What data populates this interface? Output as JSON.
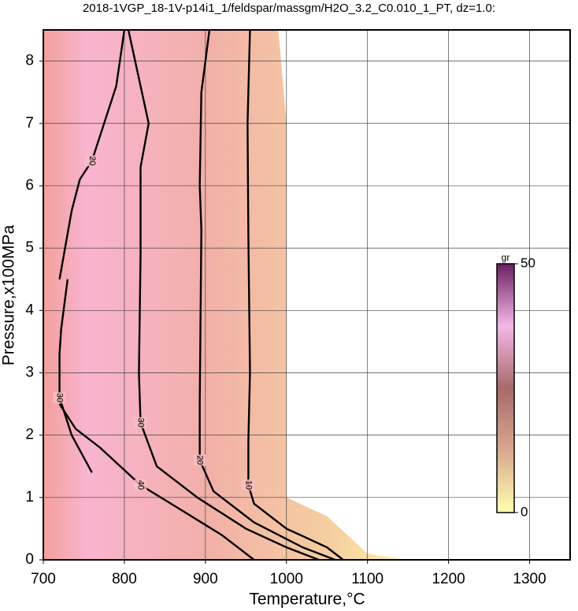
{
  "chart_data": {
    "type": "contour",
    "title": "2018-1VGP_18-1V-p14i1_1/feldspar/massgm/H2O_3.2_C0.010_1_PT, dz=1.0:",
    "x_label": "Temperature,°C",
    "y_label": "Pressure,x100MPa",
    "xlim": [
      700,
      1350
    ],
    "ylim": [
      0,
      8.5
    ],
    "xticks": [
      700,
      800,
      900,
      1000,
      1100,
      1200,
      1300
    ],
    "yticks": [
      0,
      1,
      2,
      3,
      4,
      5,
      6,
      7,
      8
    ],
    "grid": true,
    "line_color": "#000000",
    "data_region": {
      "x": [
        700,
        700,
        990,
        1000,
        1000,
        1050,
        1100,
        1150
      ],
      "y": [
        0,
        8.5,
        8.5,
        7,
        1,
        0.7,
        0.1,
        0
      ]
    },
    "colorbar": {
      "label": "gr",
      "lim": [
        0,
        50
      ],
      "ticks": [
        0,
        50
      ],
      "colors": [
        "#ffffb0",
        "#d8a890",
        "#a86a6a",
        "#f4b8e8",
        "#6a2060"
      ]
    },
    "contours": [
      {
        "level": 10,
        "x": [
          955,
          952,
          953,
          955,
          953,
          953,
          960,
          1000,
          1050,
          1070
        ],
        "y": [
          8.5,
          7,
          5.2,
          3,
          1.9,
          1.2,
          0.9,
          0.5,
          0.2,
          0
        ]
      },
      {
        "level": 20,
        "x": [
          905,
          895,
          893,
          895,
          893,
          893,
          910,
          960,
          1020,
          1060
        ],
        "y": [
          8.5,
          7.5,
          6,
          5.3,
          2.5,
          1.6,
          1.1,
          0.6,
          0.2,
          0
        ]
      },
      {
        "level": 30,
        "x": [
          805,
          830,
          820,
          820,
          818,
          820,
          840,
          890,
          950,
          1000,
          1040
        ],
        "y": [
          8.5,
          7,
          6.3,
          4.9,
          3,
          2.2,
          1.5,
          1,
          0.5,
          0.2,
          0
        ]
      },
      {
        "level": 40,
        "x": [
          720,
          740,
          770,
          820,
          870,
          920,
          960
        ],
        "y": [
          2.5,
          2.1,
          1.8,
          1.2,
          0.8,
          0.4,
          0
        ]
      },
      {
        "level": 20,
        "x": [
          720,
          735,
          745,
          760,
          775,
          790,
          800
        ],
        "y": [
          4.5,
          5.6,
          6.1,
          6.4,
          7,
          7.6,
          8.5
        ]
      },
      {
        "level": 30,
        "x": [
          730,
          722,
          720,
          720,
          735,
          760
        ],
        "y": [
          4.5,
          3.7,
          3.3,
          2.6,
          2.0,
          1.4
        ]
      }
    ]
  }
}
